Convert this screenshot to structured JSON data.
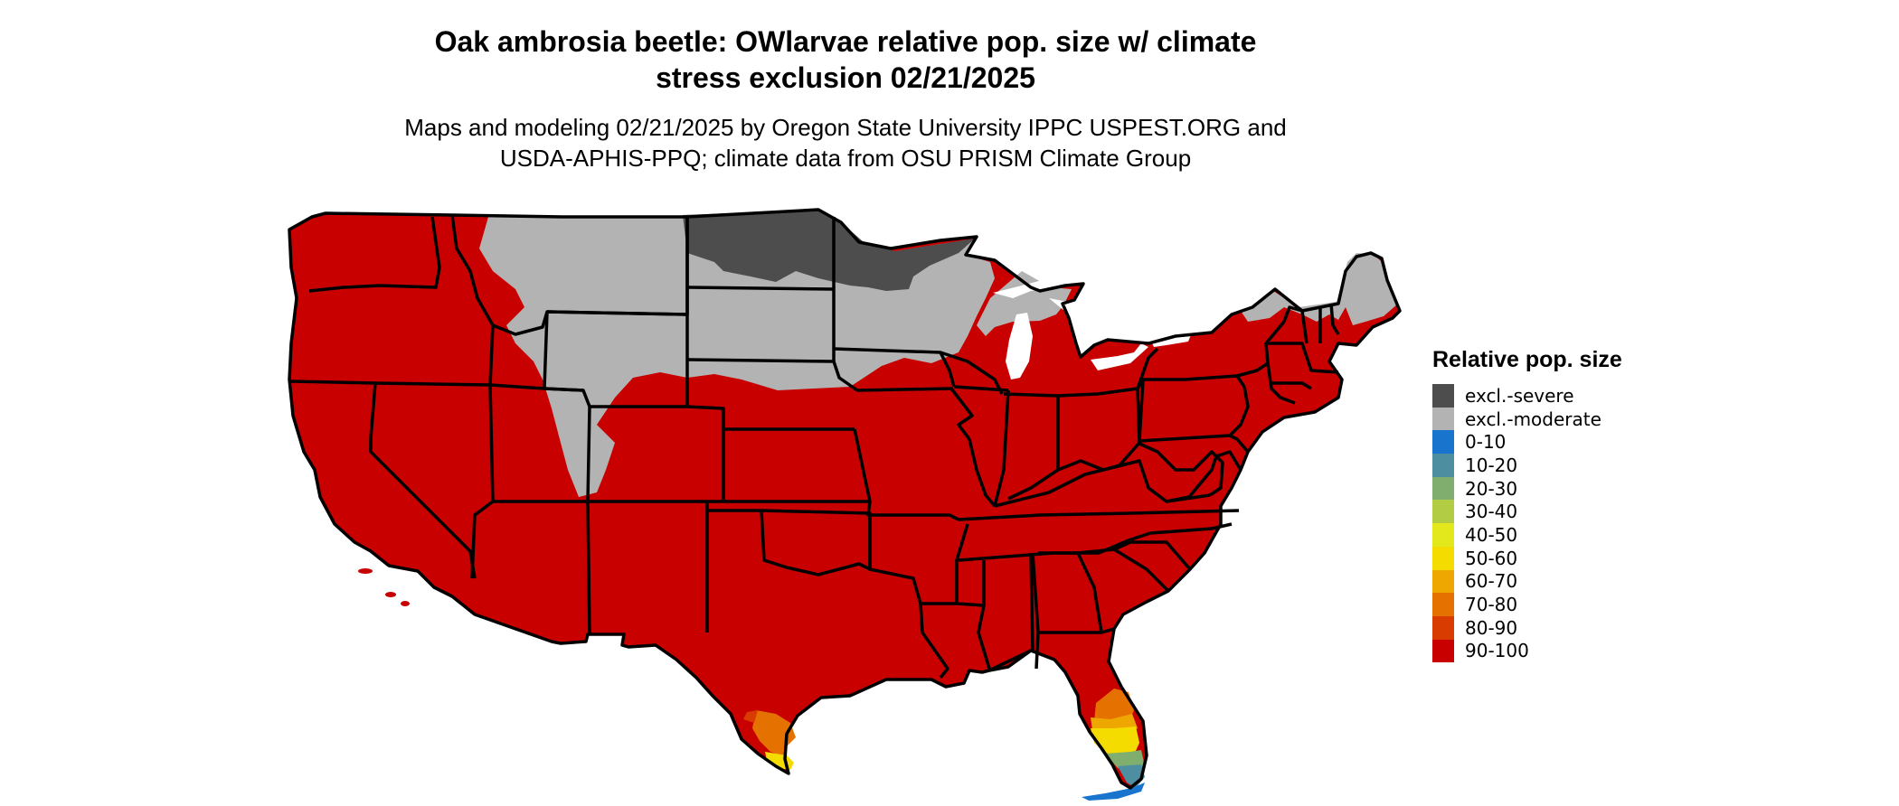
{
  "title": {
    "line1": "Oak ambrosia beetle: OWlarvae relative pop. size w/ climate",
    "line2": "stress exclusion 02/21/2025"
  },
  "subtitle": {
    "line1": "Maps and modeling 02/21/2025 by Oregon State University IPPC USPEST.ORG and",
    "line2": "USDA-APHIS-PPQ; climate data from OSU PRISM Climate Group"
  },
  "legend": {
    "title": "Relative pop. size",
    "items": [
      {
        "label": "excl.-severe",
        "color": "#4d4d4d"
      },
      {
        "label": "excl.-moderate",
        "color": "#b3b3b3"
      },
      {
        "label": "0-10",
        "color": "#1874cd"
      },
      {
        "label": "10-20",
        "color": "#4d8fa0"
      },
      {
        "label": "20-30",
        "color": "#7fae6e"
      },
      {
        "label": "30-40",
        "color": "#b2cc44"
      },
      {
        "label": "40-50",
        "color": "#e2e81c"
      },
      {
        "label": "50-60",
        "color": "#f5dc00"
      },
      {
        "label": "60-70",
        "color": "#eea600"
      },
      {
        "label": "70-80",
        "color": "#e57200"
      },
      {
        "label": "80-90",
        "color": "#d93c00"
      },
      {
        "label": "90-100",
        "color": "#c80000"
      }
    ]
  },
  "map": {
    "region": "Contiguous United States",
    "base_class": "90-100",
    "colors": {
      "high": "#c80000",
      "excl_moderate": "#b3b3b3",
      "excl_severe": "#4d4d4d",
      "border": "#000000"
    }
  }
}
